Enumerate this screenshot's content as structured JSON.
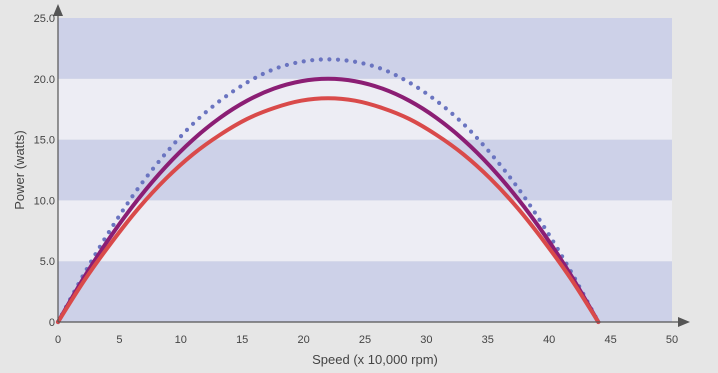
{
  "chart_data": {
    "type": "line",
    "xlabel": "Speed (x 10,000 rpm)",
    "ylabel": "Power (watts)",
    "xlim": [
      0,
      50
    ],
    "ylim": [
      0,
      25
    ],
    "x_ticks": [
      "0",
      "5",
      "10",
      "15",
      "20",
      "25",
      "30",
      "35",
      "40",
      "45",
      "50"
    ],
    "y_ticks": [
      "0",
      "5.0",
      "10.0",
      "15.0",
      "20.0",
      "25.0"
    ],
    "grid": "alternating horizontal bands",
    "legend": "none",
    "series": [
      {
        "style": "dotted",
        "color": "#6a74c0",
        "x": [
          0,
          2.2,
          4.4,
          6.6,
          8.8,
          11,
          13.2,
          15.4,
          17.6,
          19.8,
          22,
          24.2,
          26.4,
          28.6,
          30.8,
          33,
          35.2,
          37.4,
          39.6,
          41.8,
          44
        ],
        "values": [
          0,
          4.1,
          7.8,
          11.1,
          13.9,
          16.3,
          18.2,
          19.7,
          20.8,
          21.4,
          21.6,
          21.4,
          20.8,
          19.7,
          18.2,
          16.3,
          13.9,
          11.1,
          7.8,
          4.1,
          0
        ]
      },
      {
        "style": "solid",
        "color": "#8b1e74",
        "x": [
          0,
          2.2,
          4.4,
          6.6,
          8.8,
          11,
          13.2,
          15.4,
          17.6,
          19.8,
          22,
          24.2,
          26.4,
          28.6,
          30.8,
          33,
          35.2,
          37.4,
          39.6,
          41.8,
          44
        ],
        "values": [
          0,
          3.8,
          7.2,
          10.2,
          12.8,
          15.0,
          16.8,
          18.2,
          19.2,
          19.8,
          20.0,
          19.8,
          19.2,
          18.2,
          16.8,
          15.0,
          12.8,
          10.2,
          7.2,
          3.8,
          0
        ]
      },
      {
        "style": "solid",
        "color": "#d94a4a",
        "x": [
          0,
          2.2,
          4.4,
          6.6,
          8.8,
          11,
          13.2,
          15.4,
          17.6,
          19.8,
          22,
          24.2,
          26.4,
          28.6,
          30.8,
          33,
          35.2,
          37.4,
          39.6,
          41.8,
          44
        ],
        "values": [
          0,
          3.5,
          6.6,
          9.4,
          11.8,
          13.8,
          15.4,
          16.7,
          17.6,
          18.2,
          18.4,
          18.2,
          17.6,
          16.7,
          15.4,
          13.8,
          11.8,
          9.4,
          6.6,
          3.5,
          0
        ]
      }
    ],
    "colors": {
      "band_dark": "#cdd1e8",
      "band_light": "#ededf4",
      "axis": "#555555",
      "background": "#e6e6e6"
    }
  }
}
